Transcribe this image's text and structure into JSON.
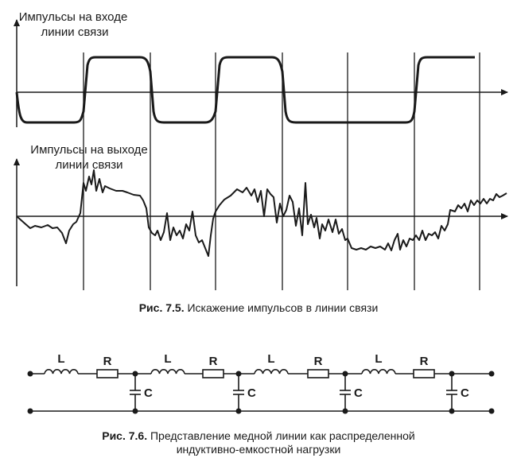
{
  "fig75": {
    "top_label_line1": "Импульсы на входе",
    "top_label_line2": "линии связи",
    "bottom_label_line1": "Импульсы на выходе",
    "bottom_label_line2": "линии связи",
    "caption_num": "Рис. 7.5.",
    "caption_text": " Искажение импульсов в линии связи"
  },
  "fig76": {
    "inductor_label": "L",
    "resistor_label": "R",
    "capacitor_label": "C",
    "caption_num": "Рис. 7.6.",
    "caption_text": " Представление медной линии как распределенной",
    "caption_line2": "индуктивно-емкостной нагрузки"
  },
  "colors": {
    "ink": "#1a1a1a",
    "background": "#ffffff"
  }
}
